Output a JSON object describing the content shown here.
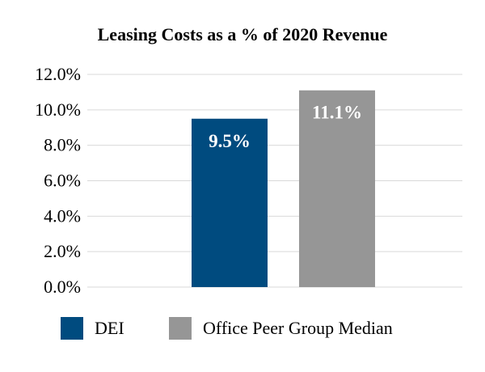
{
  "chart_data": {
    "type": "bar",
    "title": "Leasing Costs as a % of 2020 Revenue",
    "categories": [
      "DEI",
      "Office Peer Group Median"
    ],
    "values": [
      9.5,
      11.1
    ],
    "data_labels": [
      "9.5%",
      "11.1%"
    ],
    "ylim": [
      0,
      12
    ],
    "yticks": [
      "0.0%",
      "2.0%",
      "4.0%",
      "6.0%",
      "8.0%",
      "10.0%",
      "12.0%"
    ],
    "grid": true,
    "legend_placement": "bottom",
    "colors": [
      "#004b7f",
      "#969696"
    ],
    "gridline_color": "#d9d9d9",
    "label_color": "#ffffff"
  },
  "legend": [
    {
      "label": "DEI",
      "color": "#004b7f"
    },
    {
      "label": "Office Peer Group Median",
      "color": "#969696"
    }
  ]
}
